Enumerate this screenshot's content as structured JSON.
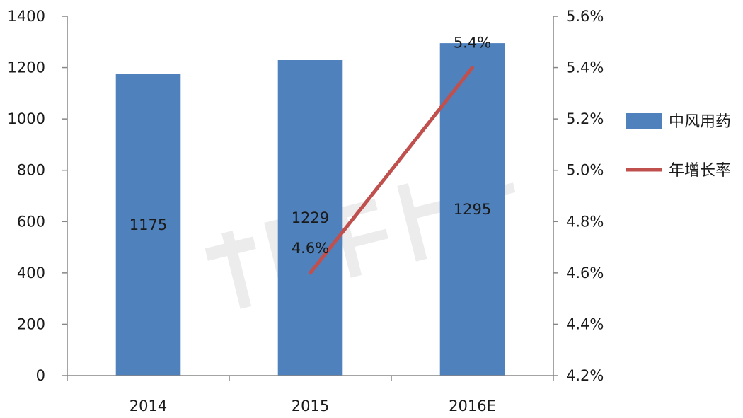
{
  "chart_data": {
    "type": "bar",
    "categories": [
      "2014",
      "2015",
      "2016E"
    ],
    "series": [
      {
        "name": "中风用药",
        "type": "bar",
        "axis": "left",
        "values": [
          1175,
          1229,
          1295
        ],
        "color": "#4f81bd"
      },
      {
        "name": "年增长率",
        "type": "line",
        "axis": "right",
        "values": [
          null,
          4.6,
          5.4
        ],
        "color": "#c0504d"
      }
    ],
    "data_labels": {
      "bars": [
        "1175",
        "1229",
        "1295"
      ],
      "line": [
        "",
        "4.6%",
        "5.4%"
      ]
    },
    "y_left": {
      "ylim": [
        0,
        1400
      ],
      "ticks": [
        "0",
        "200",
        "400",
        "600",
        "800",
        "1000",
        "1200",
        "1400"
      ]
    },
    "y_right": {
      "ylim": [
        4.2,
        5.6
      ],
      "ticks": [
        "4.2%",
        "4.4%",
        "4.6%",
        "4.8%",
        "5.0%",
        "5.2%",
        "5.4%",
        "5.6%"
      ]
    },
    "grid": false,
    "legend_position": "right",
    "title": "",
    "xlabel": "",
    "ylabel": ""
  }
}
